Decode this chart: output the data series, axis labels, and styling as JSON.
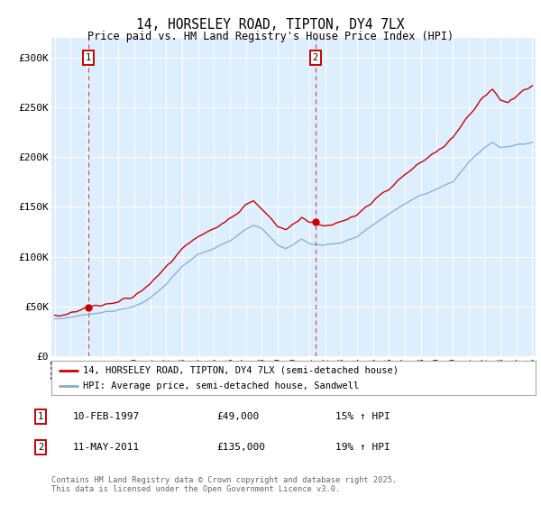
{
  "title": "14, HORSELEY ROAD, TIPTON, DY4 7LX",
  "subtitle": "Price paid vs. HM Land Registry's House Price Index (HPI)",
  "legend_line1": "14, HORSELEY ROAD, TIPTON, DY4 7LX (semi-detached house)",
  "legend_line2": "HPI: Average price, semi-detached house, Sandwell",
  "annotation1_date": "10-FEB-1997",
  "annotation1_price": 49000,
  "annotation1_hpi": "15% ↑ HPI",
  "annotation2_date": "11-MAY-2011",
  "annotation2_price": 135000,
  "annotation2_hpi": "19% ↑ HPI",
  "footer": "Contains HM Land Registry data © Crown copyright and database right 2025.\nThis data is licensed under the Open Government Licence v3.0.",
  "red_color": "#cc0000",
  "blue_color": "#88aacc",
  "bg_color": "#ddeeff",
  "box_color": "#cc0000",
  "ylim": [
    0,
    320000
  ],
  "yticks": [
    0,
    50000,
    100000,
    150000,
    200000,
    250000,
    300000
  ],
  "ytick_labels": [
    "£0",
    "£50K",
    "£100K",
    "£150K",
    "£200K",
    "£250K",
    "£300K"
  ],
  "x_start_year": 1995,
  "x_end_year": 2025
}
